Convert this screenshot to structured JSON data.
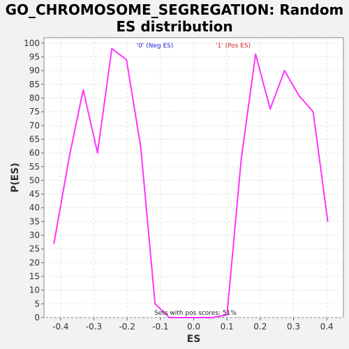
{
  "chart_data": {
    "type": "line",
    "title_line1": "GO_CHROMOSOME_SEGREGATION: Random",
    "title_line2": "ES distribution",
    "xlabel": "ES",
    "ylabel": "P(ES)",
    "xlim": [
      -0.45,
      0.45
    ],
    "ylim": [
      0,
      102
    ],
    "x_ticks": [
      -0.4,
      -0.3,
      -0.2,
      -0.1,
      0.0,
      0.1,
      0.2,
      0.3,
      0.4
    ],
    "x_tick_labels": [
      "-0.4",
      "-0.3",
      "-0.2",
      "-0.1",
      "0.0",
      "0.1",
      "0.2",
      "0.3",
      "0.4"
    ],
    "y_ticks": [
      0,
      5,
      10,
      15,
      20,
      25,
      30,
      35,
      40,
      45,
      50,
      55,
      60,
      65,
      70,
      75,
      80,
      85,
      90,
      95,
      100
    ],
    "grid": true,
    "legend": [
      {
        "label": "'0' (Neg ES)",
        "color": "#2222cc"
      },
      {
        "label": "'1' (Pos ES)",
        "color": "#cc2222"
      }
    ],
    "annotation": "Sets with pos scores: 51%",
    "series": [
      {
        "color": "#ff33ff",
        "x": [
          -0.42,
          -0.375,
          -0.332,
          -0.289,
          -0.246,
          -0.202,
          -0.159,
          -0.116,
          -0.073,
          -0.03,
          0.014,
          0.057,
          0.1,
          0.143,
          0.186,
          0.23,
          0.273,
          0.316,
          0.359,
          0.403
        ],
        "y": [
          27,
          58,
          83,
          60,
          98,
          94,
          62,
          5,
          0,
          0,
          0,
          0,
          1,
          58,
          96,
          76,
          90,
          81,
          75,
          35
        ]
      }
    ]
  }
}
